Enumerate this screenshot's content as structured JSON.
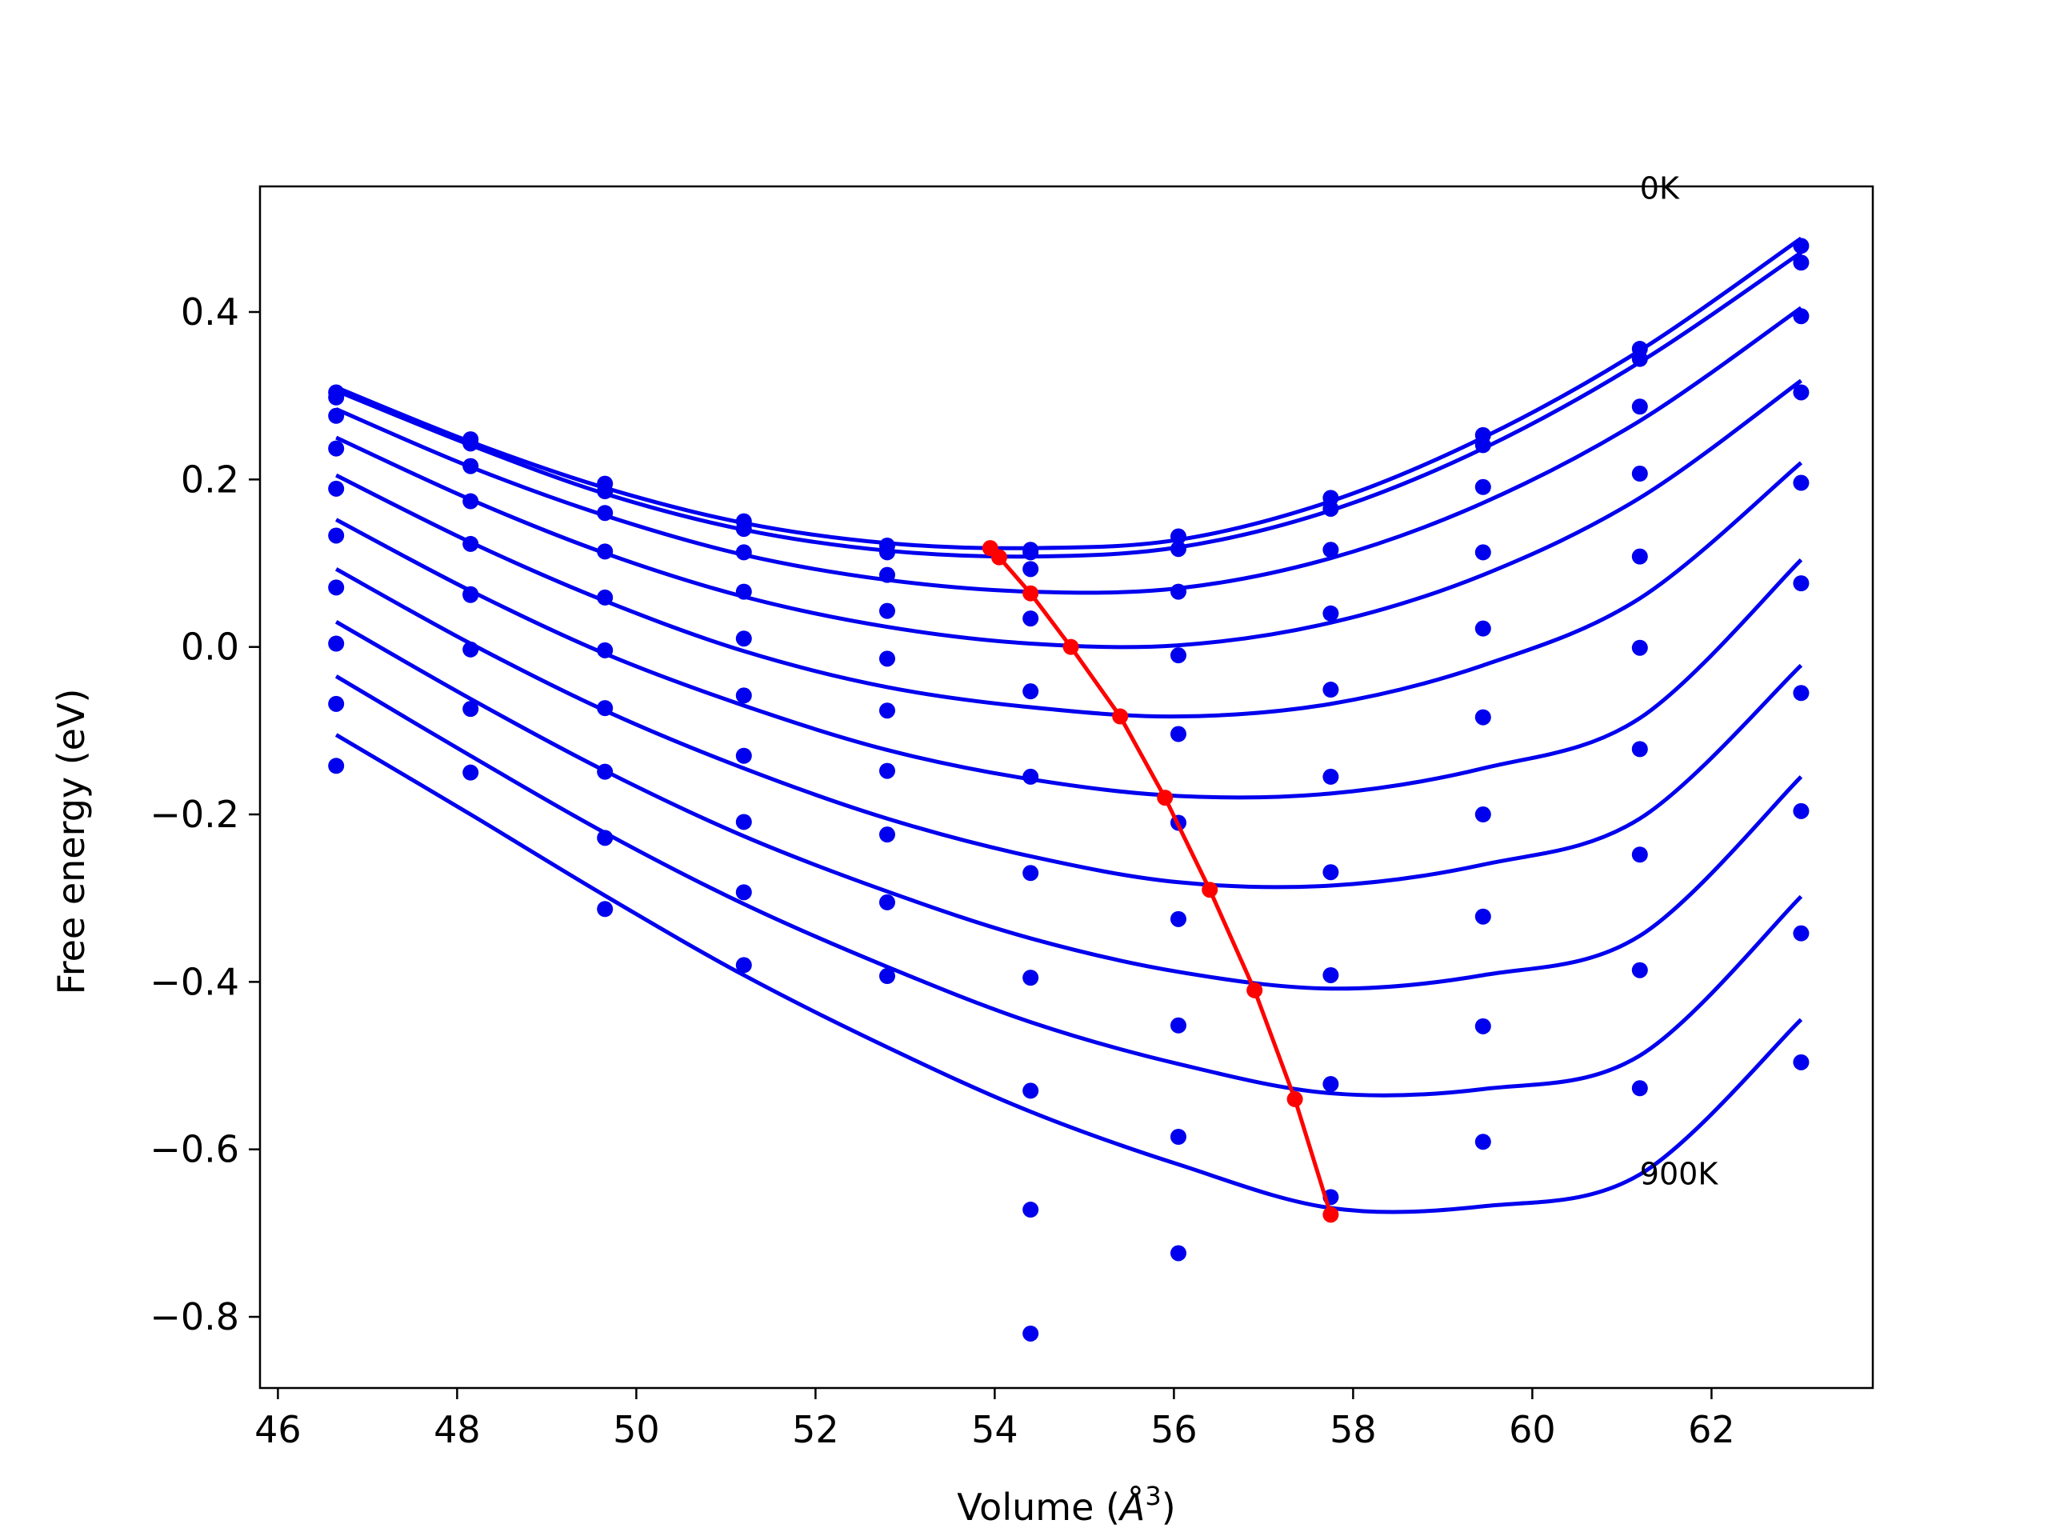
{
  "chart_data": {
    "type": "scatter",
    "title": "",
    "xlabel_main": "Volume (",
    "xlabel_unit": "Å",
    "xlabel_sup": "3",
    "xlabel_close": ")",
    "ylabel": "Free energy (eV)",
    "xlim": [
      45.8,
      63.8
    ],
    "ylim": [
      -0.885,
      0.55
    ],
    "xticks": [
      46,
      48,
      50,
      52,
      54,
      56,
      58,
      60,
      62
    ],
    "yticks": [
      0.4,
      0.2,
      0.0,
      -0.2,
      -0.4,
      -0.6,
      -0.8
    ],
    "ytick_labels": [
      "0.4",
      "0.2",
      "0.0",
      "−0.2",
      "−0.4",
      "−0.6",
      "−0.8"
    ],
    "xtick_labels": [
      "46",
      "48",
      "50",
      "52",
      "54",
      "56",
      "58",
      "60",
      "62"
    ],
    "grid": false,
    "annotations": [
      {
        "text": "0K",
        "x": 61.2,
        "y": 0.535
      },
      {
        "text": "900K",
        "x": 61.2,
        "y": -0.642
      }
    ],
    "colors": {
      "series": "#0000ee",
      "minima": "#ff0000",
      "axes": "#000000"
    },
    "volumes": [
      46.65,
      48.15,
      49.65,
      51.2,
      52.8,
      54.4,
      56.05,
      57.75,
      59.45,
      61.2,
      63.0
    ],
    "series": [
      {
        "curve": [
          0.31,
          0.245,
          0.19,
          0.148,
          0.124,
          0.118,
          0.128,
          0.174,
          0.25,
          0.354,
          0.488
        ],
        "points": [
          0.304,
          0.248,
          0.195,
          0.15,
          0.121,
          0.116,
          0.132,
          0.178,
          0.253,
          0.356,
          0.479
        ]
      },
      {
        "curve": [
          0.306,
          0.241,
          0.183,
          0.14,
          0.115,
          0.108,
          0.119,
          0.163,
          0.237,
          0.34,
          0.471
        ],
        "points": [
          0.298,
          0.243,
          0.186,
          0.141,
          0.113,
          0.113,
          0.117,
          0.165,
          0.241,
          0.344,
          0.459
        ]
      },
      {
        "curve": [
          0.284,
          0.215,
          0.157,
          0.11,
          0.08,
          0.066,
          0.07,
          0.106,
          0.172,
          0.27,
          0.405
        ],
        "points": [
          0.276,
          0.216,
          0.16,
          0.113,
          0.086,
          0.093,
          0.066,
          0.116,
          0.191,
          0.287,
          0.395
        ]
      },
      {
        "curve": [
          0.25,
          0.176,
          0.112,
          0.06,
          0.024,
          0.004,
          0.002,
          0.029,
          0.086,
          0.178,
          0.318
        ],
        "points": [
          0.237,
          0.174,
          0.114,
          0.066,
          0.043,
          0.034,
          -0.01,
          0.04,
          0.022,
          0.207,
          0.304
        ]
      },
      {
        "curve": [
          0.205,
          0.125,
          0.055,
          -0.005,
          -0.048,
          -0.072,
          -0.083,
          -0.068,
          -0.022,
          0.058,
          0.22
        ],
        "points": [
          0.189,
          0.123,
          0.059,
          0.01,
          -0.014,
          -0.053,
          -0.104,
          -0.051,
          0.113,
          0.108,
          0.196
        ]
      },
      {
        "curve": [
          0.152,
          0.067,
          -0.008,
          -0.07,
          -0.123,
          -0.158,
          -0.178,
          -0.175,
          -0.145,
          -0.085,
          0.104
        ],
        "points": [
          0.133,
          0.063,
          -0.004,
          -0.058,
          -0.076,
          -0.155,
          -0.21,
          -0.155,
          -0.084,
          -0.001,
          0.076
        ]
      },
      {
        "curve": [
          0.093,
          0.004,
          -0.076,
          -0.145,
          -0.205,
          -0.25,
          -0.281,
          -0.285,
          -0.26,
          -0.205,
          -0.022
        ],
        "points": [
          0.071,
          0.062,
          -0.073,
          -0.13,
          -0.148,
          -0.27,
          -0.325,
          -0.269,
          -0.2,
          -0.122,
          -0.055
        ]
      },
      {
        "curve": [
          0.03,
          -0.062,
          -0.148,
          -0.226,
          -0.292,
          -0.348,
          -0.388,
          -0.408,
          -0.392,
          -0.345,
          -0.155
        ],
        "points": [
          0.004,
          -0.003,
          -0.149,
          -0.209,
          -0.224,
          -0.395,
          -0.452,
          -0.392,
          -0.322,
          -0.248,
          -0.196
        ]
      },
      {
        "curve": [
          -0.035,
          -0.13,
          -0.222,
          -0.307,
          -0.382,
          -0.448,
          -0.498,
          -0.533,
          -0.528,
          -0.488,
          -0.298
        ],
        "points": [
          -0.068,
          -0.074,
          -0.228,
          -0.293,
          -0.305,
          -0.53,
          -0.585,
          -0.522,
          -0.453,
          -0.386,
          -0.342
        ]
      },
      {
        "curve": [
          -0.105,
          -0.2,
          -0.297,
          -0.392,
          -0.478,
          -0.555,
          -0.618,
          -0.67,
          -0.668,
          -0.63,
          -0.445
        ],
        "points": [
          -0.142,
          -0.15,
          -0.313,
          -0.38,
          -0.393,
          -0.672,
          -0.724,
          -0.657,
          -0.591,
          -0.527,
          -0.496
        ]
      }
    ],
    "extra_points": [
      {
        "x": 54.4,
        "y": -0.82
      }
    ],
    "minima_line": {
      "x": [
        53.95,
        54.05,
        54.4,
        54.85,
        55.4,
        55.9,
        56.4,
        56.9,
        57.35,
        57.75
      ],
      "y": [
        0.118,
        0.107,
        0.064,
        0.0,
        -0.083,
        -0.18,
        -0.29,
        -0.41,
        -0.54,
        -0.678
      ]
    }
  }
}
